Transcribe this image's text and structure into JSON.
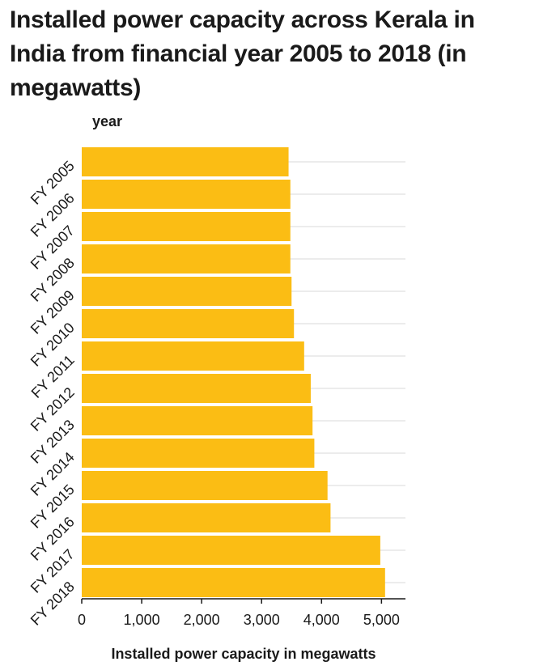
{
  "chart_data": {
    "type": "bar",
    "orientation": "horizontal",
    "title": "Installed power capacity across Kerala in India from financial year 2005 to 2018 (in megawatts)",
    "xlabel": "Installed power capacity in megawatts",
    "ylabel": "year",
    "categories": [
      "FY 2005",
      "FY 2006",
      "FY 2007",
      "FY 2008",
      "FY 2009",
      "FY 2010",
      "FY 2011",
      "FY 2012",
      "FY 2013",
      "FY 2014",
      "FY 2015",
      "FY 2016",
      "FY 2017",
      "FY 2018"
    ],
    "values": [
      3450,
      3480,
      3480,
      3480,
      3500,
      3540,
      3710,
      3820,
      3850,
      3880,
      4100,
      4150,
      4980,
      5060
    ],
    "xlim": [
      0,
      5400
    ],
    "xticks": [
      0,
      1000,
      2000,
      3000,
      4000,
      5000
    ],
    "xtick_labels": [
      "0",
      "1,000",
      "2,000",
      "3,000",
      "4,000",
      "5,000"
    ],
    "grid": "horizontal",
    "bar_color": "#fbbd14",
    "grid_color": "#d9d9d9",
    "axis_color": "#1a1a1a"
  }
}
